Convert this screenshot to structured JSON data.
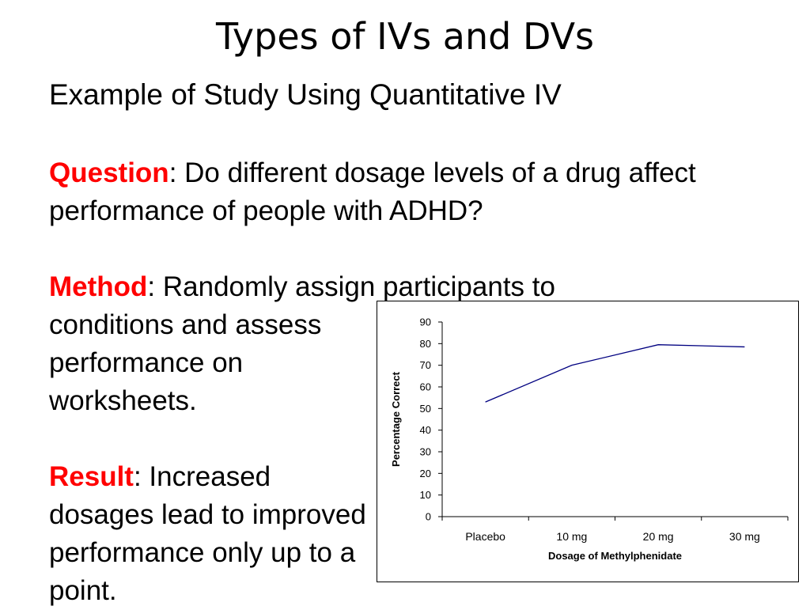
{
  "slide": {
    "title": "Types of IVs and DVs",
    "subtitle": "Example of Study Using Quantitative IV",
    "question_label": "Question",
    "question_text": ": Do different dosage levels of a drug affect performance of people with ADHD?",
    "method_label": "Method",
    "method_text_line1": ":  Randomly assign participants to",
    "method_text_rest": "conditions and assess performance on worksheets.",
    "result_label": "Result",
    "result_text": ": Increased dosages lead to improved performance only up to a point."
  },
  "colors": {
    "label": "#ff0000",
    "line": "#000080"
  },
  "chart_data": {
    "type": "line",
    "categories": [
      "Placebo",
      "10 mg",
      "20 mg",
      "30 mg"
    ],
    "series": [
      {
        "values": [
          53,
          70,
          79.5,
          78.5
        ]
      }
    ],
    "xlabel": "Dosage of Methylphenidate",
    "ylabel": "Percentage Correct",
    "ylim": [
      0,
      90
    ],
    "yticks": [
      0,
      10,
      20,
      30,
      40,
      50,
      60,
      70,
      80,
      90
    ],
    "grid": false,
    "legend": "none"
  }
}
